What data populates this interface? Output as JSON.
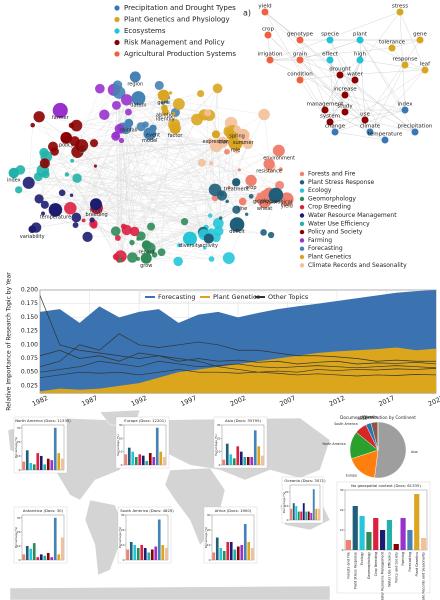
{
  "chart_data": [
    {
      "type": "network",
      "legend": [
        {
          "name": "Precipitation and Drought Types",
          "color": "#3a78b5"
        },
        {
          "name": "Plant Genetics and Physiology",
          "color": "#d9a520"
        },
        {
          "name": "Ecosystems",
          "color": "#22c3d6"
        },
        {
          "name": "Risk Management and Policy",
          "color": "#8b0000"
        },
        {
          "name": "Agricultural Production Systems",
          "color": "#f0603f"
        }
      ],
      "legend2": [
        {
          "name": "Forests and Fire",
          "color": "#f08070"
        },
        {
          "name": "Plant Stress Response",
          "color": "#1f5f7a"
        },
        {
          "name": "Ecology",
          "color": "#26c6da"
        },
        {
          "name": "Geomorphology",
          "color": "#2e8b57"
        },
        {
          "name": "Crop Breeding",
          "color": "#dc2040"
        },
        {
          "name": "Water Resource Management",
          "color": "#1c1c70"
        },
        {
          "name": "Water Use Efficiency",
          "color": "#20b2aa"
        },
        {
          "name": "Policy and Society",
          "color": "#8b0000"
        },
        {
          "name": "Farming",
          "color": "#9932cc"
        },
        {
          "name": "Forecasting",
          "color": "#4682b4"
        },
        {
          "name": "Plant Genetics",
          "color": "#daa520"
        },
        {
          "name": "Climate Records and Seasonality",
          "color": "#f4c09a"
        }
      ],
      "nodes": [
        {
          "label": "yield",
          "color": "#f08070"
        },
        {
          "label": "crop",
          "color": "#f08070"
        },
        {
          "label": "genotype",
          "color": "#f08070"
        },
        {
          "label": "wheat",
          "color": "#f08070"
        },
        {
          "label": "selection",
          "color": "#f08070"
        },
        {
          "label": "environment",
          "color": "#f08070"
        },
        {
          "label": "line",
          "color": "#f08070"
        },
        {
          "label": "resistance",
          "color": "#f08070"
        },
        {
          "label": "breeding",
          "color": "#dc2040"
        },
        {
          "label": "identify",
          "color": "#daa520"
        },
        {
          "label": "gene",
          "color": "#daa520"
        },
        {
          "label": "expression",
          "color": "#daa520"
        },
        {
          "label": "abiotic",
          "color": "#daa520"
        },
        {
          "label": "transgenic",
          "color": "#daa520"
        },
        {
          "label": "role",
          "color": "#daa520"
        },
        {
          "label": "factor",
          "color": "#daa520"
        },
        {
          "label": "physiological",
          "color": "#1f5f7a"
        },
        {
          "label": "activity",
          "color": "#1f5f7a"
        },
        {
          "label": "treatment",
          "color": "#1f5f7a"
        },
        {
          "label": "deficit",
          "color": "#1f5f7a"
        },
        {
          "label": "diversity",
          "color": "#26c6da"
        },
        {
          "label": "model",
          "color": "#4682b4"
        },
        {
          "label": "record",
          "color": "#2e8b57"
        },
        {
          "label": "region",
          "color": "#4682b4"
        },
        {
          "label": "datum",
          "color": "#4682b4"
        },
        {
          "label": "event",
          "color": "#4682b4"
        },
        {
          "label": "rainfall",
          "color": "#4682b4"
        },
        {
          "label": "summer",
          "color": "#f4c09a"
        },
        {
          "label": "spring",
          "color": "#f4c09a"
        },
        {
          "label": "temperature",
          "color": "#1c1c70"
        },
        {
          "label": "variability",
          "color": "#1c1c70"
        },
        {
          "label": "flood",
          "color": "#1c1c70"
        },
        {
          "label": "policy",
          "color": "#8b0000"
        },
        {
          "label": "farmer",
          "color": "#9932cc"
        },
        {
          "label": "grow",
          "color": "#2e8b57"
        },
        {
          "label": "index",
          "color": "#20b2aa"
        }
      ]
    },
    {
      "type": "network",
      "label": "a)",
      "nodes": [
        {
          "label": "yield",
          "color": "#f0603f"
        },
        {
          "label": "stress",
          "color": "#d9a520"
        },
        {
          "label": "crop",
          "color": "#f0603f"
        },
        {
          "label": "genotype",
          "color": "#f0603f"
        },
        {
          "label": "specie",
          "color": "#22c3d6"
        },
        {
          "label": "plant",
          "color": "#22c3d6"
        },
        {
          "label": "effect",
          "color": "#22c3d6"
        },
        {
          "label": "high",
          "color": "#22c3d6"
        },
        {
          "label": "tolerance",
          "color": "#d9a520"
        },
        {
          "label": "gene",
          "color": "#d9a520"
        },
        {
          "label": "grain",
          "color": "#f0603f"
        },
        {
          "label": "irrigation",
          "color": "#f0603f"
        },
        {
          "label": "response",
          "color": "#d9a520"
        },
        {
          "label": "leaf",
          "color": "#d9a520"
        },
        {
          "label": "condition",
          "color": "#f0603f"
        },
        {
          "label": "drought",
          "color": "#8b0000"
        },
        {
          "label": "water",
          "color": "#8b0000"
        },
        {
          "label": "increase",
          "color": "#8b0000"
        },
        {
          "label": "management",
          "color": "#8b0000"
        },
        {
          "label": "study",
          "color": "#8b0000"
        },
        {
          "label": "system",
          "color": "#8b0000"
        },
        {
          "label": "use",
          "color": "#8b0000"
        },
        {
          "label": "index",
          "color": "#3a78b5"
        },
        {
          "label": "change",
          "color": "#3a78b5"
        },
        {
          "label": "climate",
          "color": "#3a78b5"
        },
        {
          "label": "temperature",
          "color": "#3a78b5"
        },
        {
          "label": "precipitation",
          "color": "#3a78b5"
        }
      ]
    },
    {
      "type": "area",
      "ylabel": "Relative Importance of Research Topic by Year",
      "x": [
        1982,
        1984,
        1986,
        1988,
        1990,
        1992,
        1994,
        1996,
        1998,
        2000,
        2002,
        2004,
        2006,
        2008,
        2010,
        2012,
        2014,
        2016,
        2018,
        2020,
        2022
      ],
      "xlim": [
        1982,
        2022
      ],
      "xticks": [
        1982,
        1987,
        1992,
        1997,
        2002,
        2007,
        2012,
        2017,
        2022
      ],
      "ylim": [
        0.012,
        0.2
      ],
      "yticks": [
        0.025,
        {
          "value": 0.05,
          "label": "0.050"
        },
        0.075,
        {
          "value": 0.1,
          "label": "0.100"
        },
        0.125,
        {
          "value": 0.15,
          "label": "0.150"
        },
        0.175,
        {
          "value": 0.2,
          "label": "0.200"
        }
      ],
      "series": [
        {
          "name": "Forecasting",
          "color": "#3a73b0",
          "values": [
            0.16,
            0.165,
            0.14,
            0.17,
            0.15,
            0.16,
            0.165,
            0.14,
            0.155,
            0.16,
            0.15,
            0.158,
            0.165,
            0.17,
            0.175,
            0.18,
            0.185,
            0.19,
            0.195,
            0.198,
            0.2
          ]
        },
        {
          "name": "Plant Genetics",
          "color": "#dba51c",
          "values": [
            0.015,
            0.02,
            0.018,
            0.02,
            0.025,
            0.03,
            0.04,
            0.05,
            0.055,
            0.06,
            0.065,
            0.07,
            0.075,
            0.08,
            0.085,
            0.088,
            0.09,
            0.092,
            0.095,
            0.09,
            0.093
          ]
        },
        {
          "name": "Other Topics",
          "color": "#333333",
          "lines": [
            [
              0.19,
              0.1,
              0.09,
              0.085,
              0.08,
              0.075,
              0.08,
              0.07,
              0.075,
              0.07,
              0.072,
              0.068,
              0.07,
              0.065,
              0.068,
              0.07,
              0.065,
              0.067,
              0.066,
              0.068,
              0.065
            ],
            [
              0.06,
              0.07,
              0.1,
              0.09,
              0.12,
              0.1,
              0.095,
              0.1,
              0.105,
              0.1,
              0.09,
              0.09,
              0.085,
              0.08,
              0.08,
              0.078,
              0.075,
              0.07,
              0.072,
              0.07,
              0.07
            ],
            [
              0.05,
              0.055,
              0.06,
              0.07,
              0.065,
              0.06,
              0.07,
              0.065,
              0.06,
              0.062,
              0.065,
              0.06,
              0.058,
              0.06,
              0.062,
              0.06,
              0.058,
              0.06,
              0.062,
              0.06,
              0.058
            ],
            [
              0.08,
              0.09,
              0.075,
              0.08,
              0.07,
              0.085,
              0.08,
              0.075,
              0.07,
              0.06,
              0.055,
              0.05,
              0.048,
              0.045,
              0.047,
              0.045,
              0.043,
              0.045,
              0.044,
              0.046,
              0.045
            ],
            [
              0.04,
              0.045,
              0.05,
              0.048,
              0.05,
              0.045,
              0.05,
              0.055,
              0.05,
              0.05,
              0.048,
              0.05,
              0.052,
              0.05,
              0.055,
              0.053,
              0.055,
              0.054,
              0.056,
              0.055,
              0.057
            ]
          ]
        }
      ]
    },
    {
      "type": "map",
      "ylabel": "Percentage (%)",
      "regions": [
        {
          "title": "North America (Docs: 11335)",
          "ylim": [
            0,
            32
          ],
          "yticks": [
            0,
            10,
            20,
            30
          ],
          "values": [
            6,
            14,
            5,
            4,
            12,
            10,
            4,
            8,
            7,
            30,
            12,
            8
          ]
        },
        {
          "title": "Europe (Docs: 12201)",
          "ylim": [
            0,
            30
          ],
          "yticks": [
            0,
            10,
            20,
            30
          ],
          "values": [
            8,
            13,
            10,
            6,
            8,
            7,
            3,
            9,
            6,
            28,
            10,
            6
          ]
        },
        {
          "title": "Asia (Docs: 35795)",
          "ylim": [
            0,
            30
          ],
          "yticks": [
            0,
            10,
            20,
            30
          ],
          "values": [
            4,
            16,
            8,
            5,
            14,
            10,
            6,
            6,
            6,
            26,
            14,
            7
          ]
        },
        {
          "title": "Oceania (Docs: 3071)",
          "ylim": [
            0,
            25
          ],
          "yticks": [
            0,
            10,
            20
          ],
          "values": [
            8,
            12,
            10,
            6,
            6,
            12,
            6,
            6,
            5,
            22,
            8,
            8
          ]
        },
        {
          "title": "Antarctica (Docs: 30)",
          "ylim": [
            0,
            32
          ],
          "yticks": [
            0,
            10,
            20,
            30
          ],
          "values": [
            4,
            10,
            8,
            12,
            2,
            4,
            3,
            5,
            2,
            30,
            4,
            16
          ]
        },
        {
          "title": "South America (Docs: 4825)",
          "ylim": [
            0,
            30
          ],
          "yticks": [
            0,
            10,
            20,
            30
          ],
          "values": [
            7,
            12,
            10,
            8,
            10,
            8,
            5,
            7,
            9,
            27,
            10,
            8
          ]
        },
        {
          "title": "Africa (Docs: 1900)",
          "ylim": [
            0,
            30
          ],
          "yticks": [
            0,
            10,
            20,
            30
          ],
          "values": [
            5,
            15,
            8,
            6,
            12,
            12,
            7,
            9,
            10,
            24,
            12,
            8
          ]
        }
      ]
    },
    {
      "type": "pie",
      "title": "Document Distribution by Continent",
      "categories": [
        "Asia",
        "Europe",
        "North America",
        "South America",
        "Africa",
        "Oceania",
        "Antarctica"
      ],
      "values": [
        52,
        18,
        16,
        7,
        3,
        4,
        0.1
      ],
      "colors": [
        "#9e9e9e",
        "#ff7f0e",
        "#2ca02c",
        "#d62728",
        "#1f77b4",
        "#8c564b",
        "#e377c2"
      ]
    },
    {
      "type": "bar",
      "title": "No geospatial context (Docs: 61335)",
      "ylim": [
        0,
        30
      ],
      "yticks": [
        0,
        10,
        20,
        30
      ],
      "values": [
        5,
        22,
        17,
        9,
        16,
        10,
        15,
        3,
        16,
        10,
        28,
        6
      ]
    }
  ]
}
